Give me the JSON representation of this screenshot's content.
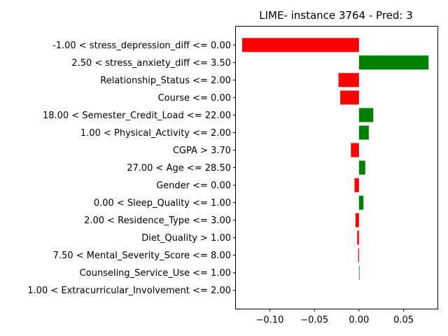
{
  "chart_data": {
    "type": "bar",
    "orientation": "horizontal",
    "title": "LIME- instance 3764 - Pred: 3",
    "xlabel": "",
    "ylabel": "",
    "xlim": [
      -0.138,
      0.088
    ],
    "xticks": [
      -0.1,
      -0.05,
      0.0,
      0.05
    ],
    "xtick_labels": [
      "−0.10",
      "−0.05",
      "0.00",
      "0.05"
    ],
    "grid": false,
    "colors": {
      "positive": "#008000",
      "negative": "#ff0000"
    },
    "categories": [
      "-1.00 < stress_depression_diff <= 0.00",
      "2.50 < stress_anxiety_diff <= 3.50",
      "Relationship_Status <= 2.00",
      "Course <= 0.00",
      "18.00 < Semester_Credit_Load <= 22.00",
      "1.00 < Physical_Activity <= 2.00",
      "CGPA > 3.70",
      "27.00 < Age <= 28.50",
      "Gender <= 0.00",
      "0.00 < Sleep_Quality <= 1.00",
      "2.00 < Residence_Type <= 3.00",
      "Diet_Quality > 1.00",
      "7.50 < Mental_Severity_Score <= 8.00",
      "Counseling_Service_Use <= 1.00",
      "1.00 < Extracurricular_Involvement <= 2.00"
    ],
    "values": [
      -0.131,
      0.078,
      -0.023,
      -0.021,
      0.016,
      0.011,
      -0.009,
      0.007,
      -0.005,
      0.005,
      -0.004,
      -0.002,
      -0.001,
      0.0005,
      0.0
    ]
  }
}
